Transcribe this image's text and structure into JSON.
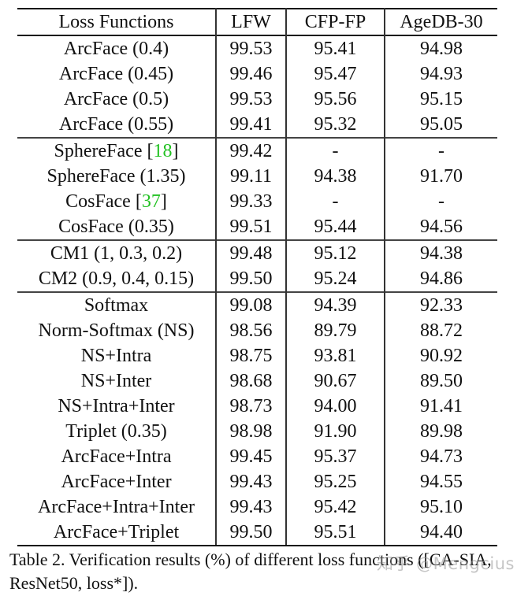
{
  "table": {
    "headers": [
      "Loss Functions",
      "LFW",
      "CFP-FP",
      "AgeDB-30"
    ],
    "groups": [
      {
        "rows": [
          {
            "name": "ArcFace (0.4)",
            "lfw": "99.53",
            "cfp": "95.41",
            "agedb": "94.98",
            "bold": false
          },
          {
            "name": "ArcFace (0.45)",
            "lfw": "99.46",
            "cfp": "95.47",
            "agedb": "94.93",
            "bold": false
          },
          {
            "name": "ArcFace (0.5)",
            "lfw": "99.53",
            "cfp": "95.56",
            "agedb": "95.15",
            "bold": true
          },
          {
            "name": "ArcFace (0.55)",
            "lfw": "99.41",
            "cfp": "95.32",
            "agedb": "95.05",
            "bold": false
          }
        ]
      },
      {
        "rows": [
          {
            "name": "SphereFace",
            "cite": "18",
            "lfw": "99.42",
            "cfp": "-",
            "agedb": "-"
          },
          {
            "name": "SphereFace (1.35)",
            "lfw": "99.11",
            "cfp": "94.38",
            "agedb": "91.70"
          },
          {
            "name": "CosFace",
            "cite": "37",
            "lfw": "99.33",
            "cfp": "-",
            "agedb": "-"
          },
          {
            "name": "CosFace (0.35)",
            "lfw": "99.51",
            "cfp": "95.44",
            "agedb": "94.56"
          }
        ]
      },
      {
        "rows": [
          {
            "name": "CM1 (1, 0.3, 0.2)",
            "lfw": "99.48",
            "cfp": "95.12",
            "agedb": "94.38"
          },
          {
            "name": "CM2 (0.9, 0.4, 0.15)",
            "lfw": "99.50",
            "cfp": "95.24",
            "agedb": "94.86"
          }
        ]
      },
      {
        "rows": [
          {
            "name": "Softmax",
            "lfw": "99.08",
            "cfp": "94.39",
            "agedb": "92.33"
          },
          {
            "name": "Norm-Softmax (NS)",
            "lfw": "98.56",
            "cfp": "89.79",
            "agedb": "88.72"
          },
          {
            "name": "NS+Intra",
            "lfw": "98.75",
            "cfp": "93.81",
            "agedb": "90.92"
          },
          {
            "name": "NS+Inter",
            "lfw": "98.68",
            "cfp": "90.67",
            "agedb": "89.50"
          },
          {
            "name": "NS+Intra+Inter",
            "lfw": "98.73",
            "cfp": "94.00",
            "agedb": "91.41"
          },
          {
            "name": "Triplet (0.35)",
            "lfw": "98.98",
            "cfp": "91.90",
            "agedb": "89.98"
          },
          {
            "name": "ArcFace+Intra",
            "lfw": "99.45",
            "cfp": "95.37",
            "agedb": "94.73"
          },
          {
            "name": "ArcFace+Inter",
            "lfw": "99.43",
            "cfp": "95.25",
            "agedb": "94.55"
          },
          {
            "name": "ArcFace+Intra+Inter",
            "lfw": "99.43",
            "cfp": "95.42",
            "agedb": "95.10"
          },
          {
            "name": "ArcFace+Triplet",
            "lfw": "99.50",
            "cfp": "95.51",
            "agedb": "94.40"
          }
        ]
      }
    ]
  },
  "caption": "Table 2. Verification results (%) of different loss functions ([CA-SIA, ResNet50, loss*]).",
  "watermark": "知乎 @Mengcius",
  "colors": {
    "citation": "#22c122",
    "text": "#111111"
  }
}
